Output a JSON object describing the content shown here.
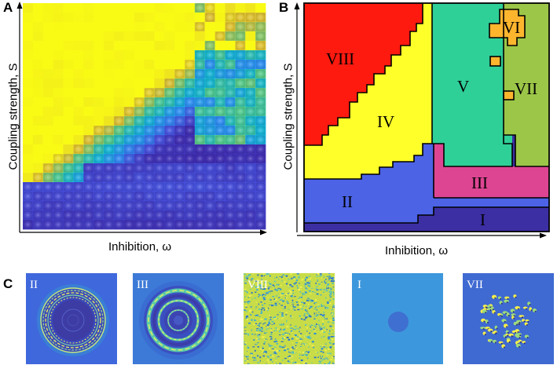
{
  "panels": {
    "a": {
      "label": "A",
      "xlabel": "Inhibition,  ω",
      "ylabel": "Coupling strength, S",
      "heatmap": {
        "rows": 24,
        "cols": 24
      }
    },
    "b": {
      "label": "B",
      "xlabel": "Inhibition,  ω",
      "ylabel": "Coupling strength, S",
      "regions": [
        {
          "id": "VIII",
          "color": "#ff1a10"
        },
        {
          "id": "IV",
          "color": "#ffff2a"
        },
        {
          "id": "V",
          "color": "#2fcf98"
        },
        {
          "id": "VI",
          "color": "#fdb52e"
        },
        {
          "id": "VII",
          "color": "#9cc648"
        },
        {
          "id": "III",
          "color": "#dd4592"
        },
        {
          "id": "II",
          "color": "#4c63e6"
        },
        {
          "id": "I",
          "color": "#3c2fa3"
        }
      ]
    },
    "c": {
      "label": "C",
      "thumbnails": [
        {
          "id": "II",
          "kind": "rings-bright"
        },
        {
          "id": "III",
          "kind": "rings-multi"
        },
        {
          "id": "VIII",
          "kind": "noise"
        },
        {
          "id": "I",
          "kind": "spot"
        },
        {
          "id": "VII",
          "kind": "clusters"
        }
      ]
    }
  }
}
